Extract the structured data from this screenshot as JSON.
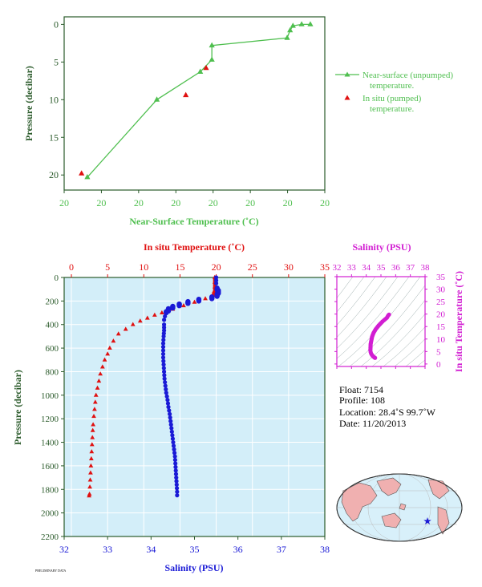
{
  "colors": {
    "green": "#4fbf4f",
    "red": "#e01010",
    "blue": "#1a1ad6",
    "magenta": "#d21ed2",
    "frame_dark": "#2a5a2a",
    "panel_bg": "#d3eef9",
    "map_land": "#f0b0b0",
    "map_ocean": "#d8f0fa",
    "star": "#1a1ad6"
  },
  "chart_data": [
    {
      "id": "near_surface",
      "type": "scatter",
      "xlabel": "Near-Surface Temperature (˚C)",
      "ylabel": "Pressure (decibar)",
      "x_tick_labels": [
        "20",
        "20",
        "20",
        "20",
        "20",
        "20",
        "20",
        "20"
      ],
      "y_tick_labels": [
        "0",
        "5",
        "10",
        "15",
        "20"
      ],
      "ylim": [
        0,
        22
      ],
      "y_reversed": true,
      "x_note": "x tick labels are all printed as 20 (sub-degree spread, ~19.60 to ~20.05 °C)",
      "xlim": [
        19.6,
        20.05
      ],
      "series": [
        {
          "name": "Near-surface (unpumped) temperature.",
          "marker": "triangle-line",
          "color_key": "green",
          "points": [
            [
              19.64,
              20.3
            ],
            [
              19.76,
              10.0
            ],
            [
              19.835,
              6.3
            ],
            [
              19.855,
              4.7
            ],
            [
              19.855,
              2.8
            ],
            [
              19.985,
              1.8
            ],
            [
              19.99,
              0.8
            ],
            [
              19.995,
              0.2
            ],
            [
              20.01,
              0.0
            ],
            [
              20.025,
              0.0
            ]
          ]
        },
        {
          "name": "In situ (pumped) temperature.",
          "marker": "triangle",
          "color_key": "red",
          "points": [
            [
              19.63,
              19.8
            ],
            [
              19.81,
              9.4
            ],
            [
              19.845,
              5.8
            ]
          ]
        }
      ]
    },
    {
      "id": "profile",
      "type": "scatter",
      "ylabel": "Pressure (decibar)",
      "top_xlabel": "In situ Temperature (˚C)",
      "bottom_xlabel": "Salinity (PSU)",
      "temp_ticks": [
        "0",
        "5",
        "10",
        "15",
        "20",
        "25",
        "30",
        "35"
      ],
      "sal_ticks": [
        "32",
        "33",
        "34",
        "35",
        "36",
        "37",
        "38"
      ],
      "p_ticks": [
        "0",
        "200",
        "400",
        "600",
        "800",
        "1000",
        "1200",
        "1400",
        "1600",
        "1800",
        "2000",
        "2200"
      ],
      "temp_range": [
        -1,
        35
      ],
      "sal_range": [
        32,
        38
      ],
      "p_range": [
        0,
        2200
      ],
      "temperature": [
        [
          19.8,
          0
        ],
        [
          19.8,
          40
        ],
        [
          19.8,
          80
        ],
        [
          19.7,
          120
        ],
        [
          19.5,
          150
        ],
        [
          18.5,
          180
        ],
        [
          17.0,
          210
        ],
        [
          15.5,
          240
        ],
        [
          14.0,
          270
        ],
        [
          12.5,
          300
        ],
        [
          11.5,
          320
        ],
        [
          10.5,
          345
        ],
        [
          9.5,
          370
        ],
        [
          8.5,
          400
        ],
        [
          7.5,
          440
        ],
        [
          6.5,
          480
        ],
        [
          5.8,
          540
        ],
        [
          5.3,
          600
        ],
        [
          5.0,
          650
        ],
        [
          4.6,
          700
        ],
        [
          4.3,
          760
        ],
        [
          4.0,
          820
        ],
        [
          3.8,
          880
        ],
        [
          3.6,
          940
        ],
        [
          3.4,
          1000
        ],
        [
          3.3,
          1060
        ],
        [
          3.2,
          1120
        ],
        [
          3.1,
          1180
        ],
        [
          3.0,
          1250
        ],
        [
          2.95,
          1300
        ],
        [
          2.9,
          1360
        ],
        [
          2.85,
          1420
        ],
        [
          2.8,
          1480
        ],
        [
          2.75,
          1540
        ],
        [
          2.7,
          1600
        ],
        [
          2.65,
          1660
        ],
        [
          2.6,
          1720
        ],
        [
          2.55,
          1780
        ],
        [
          2.5,
          1840
        ],
        [
          2.45,
          1855
        ]
      ],
      "salinity": [
        [
          35.5,
          0
        ],
        [
          35.5,
          50
        ],
        [
          35.52,
          90
        ],
        [
          35.55,
          120
        ],
        [
          35.52,
          150
        ],
        [
          35.4,
          170
        ],
        [
          35.1,
          190
        ],
        [
          34.85,
          210
        ],
        [
          34.65,
          230
        ],
        [
          34.5,
          250
        ],
        [
          34.4,
          275
        ],
        [
          34.35,
          300
        ],
        [
          34.32,
          330
        ],
        [
          34.3,
          360
        ],
        [
          34.3,
          400
        ],
        [
          34.3,
          450
        ],
        [
          34.29,
          500
        ],
        [
          34.28,
          560
        ],
        [
          34.28,
          620
        ],
        [
          34.28,
          680
        ],
        [
          34.29,
          740
        ],
        [
          34.3,
          800
        ],
        [
          34.31,
          860
        ],
        [
          34.33,
          920
        ],
        [
          34.35,
          980
        ],
        [
          34.38,
          1040
        ],
        [
          34.4,
          1100
        ],
        [
          34.43,
          1160
        ],
        [
          34.45,
          1220
        ],
        [
          34.47,
          1280
        ],
        [
          34.49,
          1340
        ],
        [
          34.51,
          1400
        ],
        [
          34.53,
          1460
        ],
        [
          34.55,
          1520
        ],
        [
          34.56,
          1580
        ],
        [
          34.57,
          1640
        ],
        [
          34.58,
          1700
        ],
        [
          34.59,
          1760
        ],
        [
          34.6,
          1820
        ],
        [
          34.6,
          1850
        ]
      ]
    },
    {
      "id": "ts_diagram",
      "type": "scatter",
      "title": "Salinity (PSU)",
      "ylabel": "In situ Temperature (˚C)",
      "sal_ticks": [
        "32",
        "33",
        "34",
        "35",
        "36",
        "37",
        "38"
      ],
      "temp_ticks": [
        "0",
        "5",
        "10",
        "15",
        "20",
        "25",
        "30",
        "35"
      ],
      "sal_range": [
        32,
        38
      ],
      "temp_range": [
        -1,
        35
      ],
      "points": [
        [
          35.55,
          19.8
        ],
        [
          35.5,
          19.5
        ],
        [
          35.4,
          18.5
        ],
        [
          35.1,
          17.0
        ],
        [
          34.85,
          15.5
        ],
        [
          34.65,
          14.0
        ],
        [
          34.5,
          12.5
        ],
        [
          34.4,
          11.0
        ],
        [
          34.35,
          9.5
        ],
        [
          34.3,
          8.0
        ],
        [
          34.29,
          6.5
        ],
        [
          34.28,
          5.5
        ],
        [
          34.3,
          4.8
        ],
        [
          34.33,
          4.2
        ],
        [
          34.38,
          3.7
        ],
        [
          34.43,
          3.3
        ],
        [
          34.47,
          3.0
        ],
        [
          34.52,
          2.8
        ],
        [
          34.56,
          2.6
        ],
        [
          34.6,
          2.45
        ]
      ]
    }
  ],
  "info": {
    "float": "Float:  7154",
    "profile": "Profile:  108",
    "location": "Location:  28.4˚S  99.7˚W",
    "date": "Date:  11/20/2013"
  },
  "footer_code": "PRELIMINARY DATA"
}
